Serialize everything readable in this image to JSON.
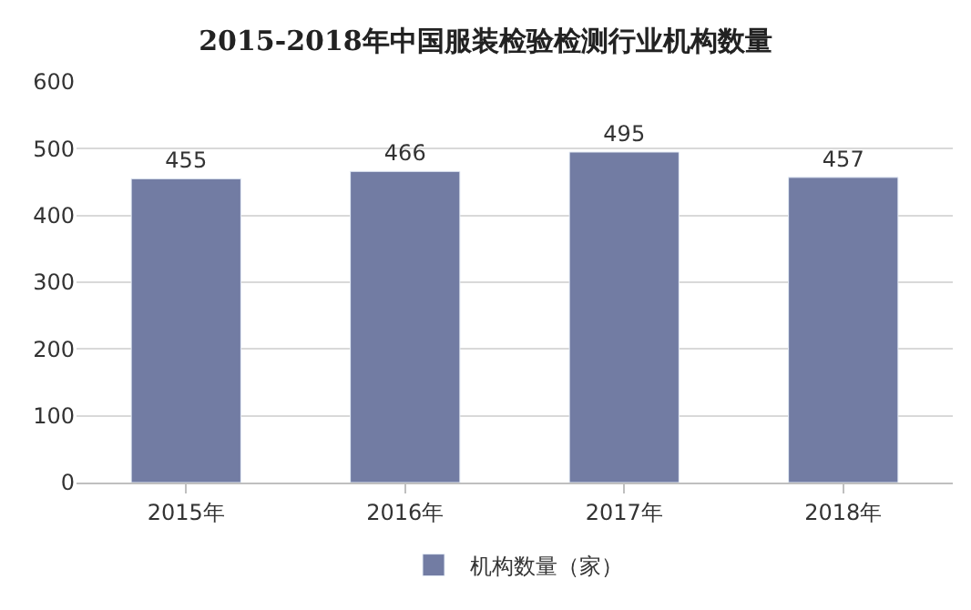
{
  "chart_data": {
    "type": "bar",
    "title": "2015-2018年中国服装检验检测行业机构数量",
    "categories": [
      "2015年",
      "2016年",
      "2017年",
      "2018年"
    ],
    "series": [
      {
        "name": "机构数量（家）",
        "color": "#727ca3",
        "values": [
          455,
          466,
          495,
          457
        ]
      }
    ],
    "ylim": [
      0,
      600
    ],
    "yticks": [
      0,
      100,
      200,
      300,
      400,
      500,
      600
    ],
    "grid": "y",
    "legend": "bottom",
    "data_labels": true
  }
}
